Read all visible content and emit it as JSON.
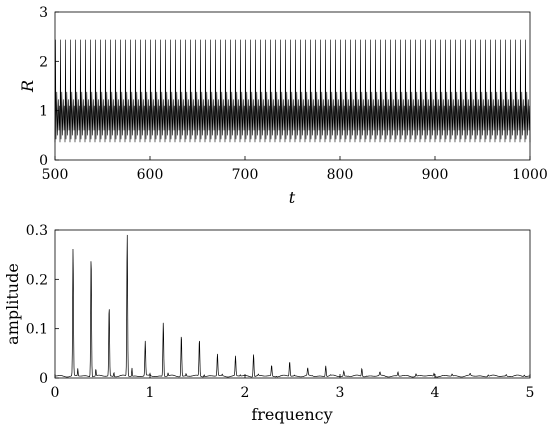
{
  "colors": {
    "line": "#000000",
    "axis": "#000000",
    "background": "#ffffff"
  },
  "chart_data": [
    {
      "type": "line",
      "title": "",
      "xlabel": "t",
      "ylabel": "R",
      "xlim": [
        500,
        1000
      ],
      "ylim": [
        0,
        3
      ],
      "xticks": [
        500,
        600,
        700,
        800,
        900,
        1000
      ],
      "yticks": [
        0,
        1,
        2,
        3
      ],
      "grid": false,
      "series": [
        {
          "period": 5.263,
          "min": 0.36,
          "max": 2.44,
          "secondary_peaks": [
            1.38,
            1.23,
            1.1
          ],
          "troughs": [
            0.36,
            0.42,
            0.5,
            0.6
          ]
        }
      ]
    },
    {
      "type": "line",
      "title": "",
      "xlabel": "frequency",
      "ylabel": "amplitude",
      "xlim": [
        0,
        5
      ],
      "ylim": [
        0,
        0.3
      ],
      "xticks": [
        0,
        1,
        2,
        3,
        4,
        5
      ],
      "yticks": [
        0,
        0.1,
        0.2,
        0.3
      ],
      "grid": false,
      "peaks": [
        {
          "f": 0.19,
          "a": 0.26
        },
        {
          "f": 0.38,
          "a": 0.248
        },
        {
          "f": 0.57,
          "a": 0.143
        },
        {
          "f": 0.76,
          "a": 0.29
        },
        {
          "f": 0.95,
          "a": 0.07
        },
        {
          "f": 1.14,
          "a": 0.11
        },
        {
          "f": 1.33,
          "a": 0.085
        },
        {
          "f": 1.52,
          "a": 0.075
        },
        {
          "f": 1.71,
          "a": 0.045
        },
        {
          "f": 1.9,
          "a": 0.04
        },
        {
          "f": 2.09,
          "a": 0.046
        },
        {
          "f": 2.28,
          "a": 0.022
        },
        {
          "f": 2.47,
          "a": 0.03
        },
        {
          "f": 2.66,
          "a": 0.015
        },
        {
          "f": 2.85,
          "a": 0.022
        },
        {
          "f": 3.04,
          "a": 0.01
        },
        {
          "f": 3.23,
          "a": 0.016
        },
        {
          "f": 3.42,
          "a": 0.007
        },
        {
          "f": 3.61,
          "a": 0.008
        },
        {
          "f": 3.8,
          "a": 0.005
        },
        {
          "f": 3.99,
          "a": 0.006
        },
        {
          "f": 4.18,
          "a": 0.004
        },
        {
          "f": 4.37,
          "a": 0.004
        },
        {
          "f": 4.56,
          "a": 0.003
        },
        {
          "f": 4.75,
          "a": 0.003
        },
        {
          "f": 4.94,
          "a": 0.003
        }
      ],
      "noise_floor": 0.004
    }
  ]
}
